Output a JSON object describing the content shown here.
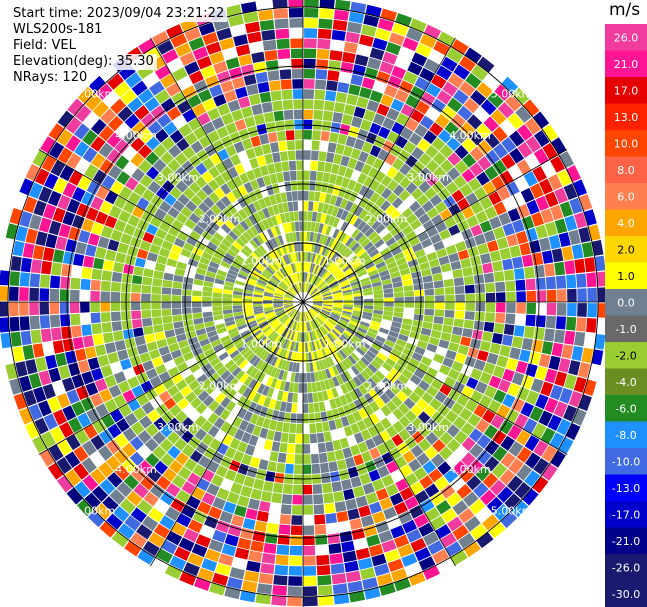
{
  "header": {
    "start_time": "Start time: 2023/09/04 23:21:22",
    "instrument": "WLS200s-181",
    "field": "Field: VEL",
    "elevation": "Elevation(deg): 35.30",
    "nrays": "NRays: 120"
  },
  "colorbar": {
    "unit": "m/s",
    "ticks": [
      "26.0",
      "21.0",
      "17.0",
      "13.0",
      "10.0",
      "8.0",
      "6.0",
      "4.0",
      "2.0",
      "1.0",
      "0.0",
      "-1.0",
      "-2.0",
      "-4.0",
      "-6.0",
      "-8.0",
      "-10.0",
      "-13.0",
      "-17.0",
      "-21.0",
      "-26.0",
      "-30.0"
    ],
    "colors": [
      "#f03c9c",
      "#ff1493",
      "#e60000",
      "#ff2200",
      "#ff4500",
      "#ff6347",
      "#ff7f50",
      "#ffa500",
      "#ffd700",
      "#ffff00",
      "#708090",
      "#696969",
      "#9acd32",
      "#6b8e23",
      "#228b22",
      "#1e90ff",
      "#4169e1",
      "#0000ff",
      "#0000cd",
      "#00008b",
      "#191970",
      "#191970"
    ]
  },
  "range_rings": {
    "labels": [
      "1.00km",
      "2.00km",
      "3.00km",
      "4.00km",
      "5.00km"
    ]
  },
  "palette": {
    "inner_green": "#9acd32",
    "inner_gray": "#708090",
    "inner_yellow": "#ffff00"
  }
}
